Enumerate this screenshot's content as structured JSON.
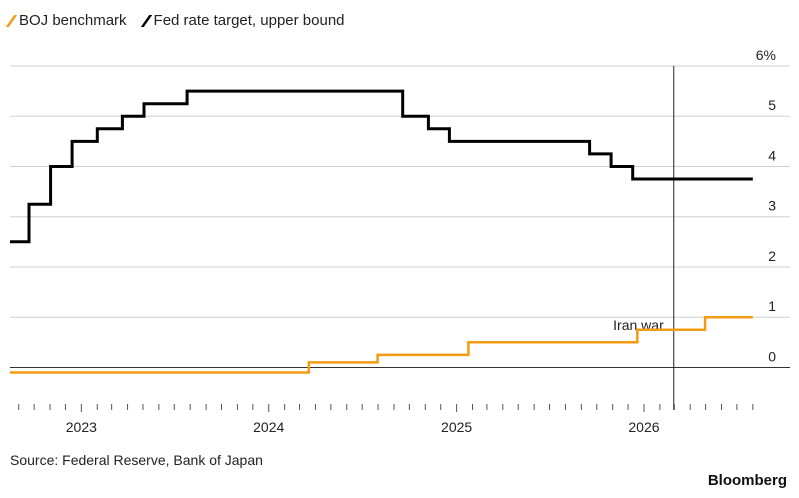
{
  "chart_data": {
    "type": "line",
    "title": "",
    "xlabel": "",
    "ylabel": "",
    "y_unit_label": "6%",
    "ylim": [
      -0.25,
      6
    ],
    "yticks": [
      0,
      1,
      2,
      3,
      4,
      5,
      6
    ],
    "ytick_labels": [
      "0",
      "1",
      "2",
      "3",
      "4",
      "5",
      "6%"
    ],
    "xlim": [
      "2022-08-15",
      "2026-08-15"
    ],
    "xticks": [
      {
        "date": "2023-01-01",
        "label": "2023"
      },
      {
        "date": "2024-01-01",
        "label": "2024"
      },
      {
        "date": "2025-01-01",
        "label": "2025"
      },
      {
        "date": "2026-01-01",
        "label": "2026"
      }
    ],
    "grid": true,
    "legend": "top-left",
    "series": [
      {
        "name": "BOJ benchmark",
        "color": "#F59B12",
        "step": true,
        "points": [
          [
            "2022-08-15",
            -0.1
          ],
          [
            "2024-03-19",
            0.1
          ],
          [
            "2024-07-31",
            0.25
          ],
          [
            "2025-01-24",
            0.5
          ],
          [
            "2025-12-19",
            0.75
          ],
          [
            "2026-04-30",
            1.0
          ],
          [
            "2026-08-01",
            1.0
          ]
        ]
      },
      {
        "name": "Fed rate target, upper bound",
        "color": "#000000",
        "step": true,
        "points": [
          [
            "2022-08-15",
            2.5
          ],
          [
            "2022-09-21",
            3.25
          ],
          [
            "2022-11-02",
            4.0
          ],
          [
            "2022-12-14",
            4.5
          ],
          [
            "2023-02-01",
            4.75
          ],
          [
            "2023-03-22",
            5.0
          ],
          [
            "2023-05-03",
            5.25
          ],
          [
            "2023-07-26",
            5.5
          ],
          [
            "2024-09-18",
            5.0
          ],
          [
            "2024-11-07",
            4.75
          ],
          [
            "2024-12-18",
            4.5
          ],
          [
            "2025-09-17",
            4.25
          ],
          [
            "2025-10-29",
            4.0
          ],
          [
            "2025-12-10",
            3.75
          ],
          [
            "2026-08-01",
            3.75
          ]
        ]
      }
    ],
    "annotations": [
      {
        "date": "2026-02-28",
        "label": "Iran war"
      }
    ]
  },
  "source_text": "Source: Federal Reserve, Bank of Japan",
  "brand": "Bloomberg"
}
